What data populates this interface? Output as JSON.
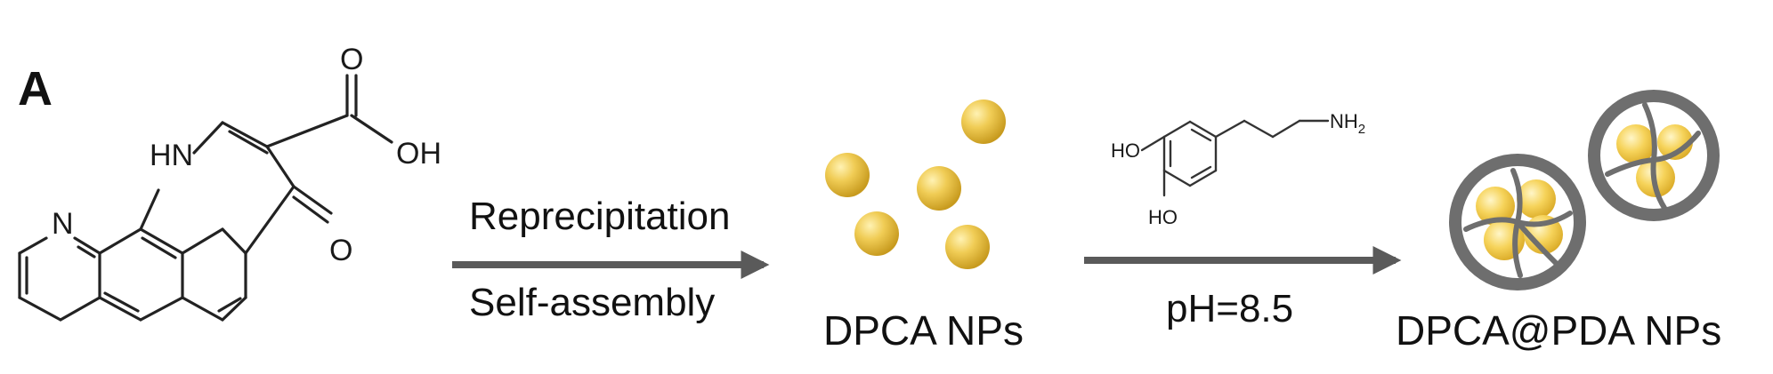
{
  "panel_label": "A",
  "dpca_molecule": {
    "atoms": {
      "n_ring": "N",
      "nh": "HN",
      "carbonyl_o": "O",
      "acid_o": "O",
      "acid_oh": "OH"
    }
  },
  "step1": {
    "above": "Reprecipitation",
    "below": "Self-assembly"
  },
  "dpca_nps_label": "DPCA NPs",
  "dopamine_molecule": {
    "atoms": {
      "oh_top": "HO",
      "oh_bottom": "HO",
      "amine": "NH",
      "amine_sub": "2"
    }
  },
  "step2": {
    "below": "pH=8.5"
  },
  "dpca_pda_nps_label": "DPCA@PDA NPs",
  "colors": {
    "nanoparticle_gold": "#e2b93a",
    "shell_gray": "#6e6e6e",
    "arrow_gray": "#5a5a5a",
    "bond": "#222222"
  }
}
